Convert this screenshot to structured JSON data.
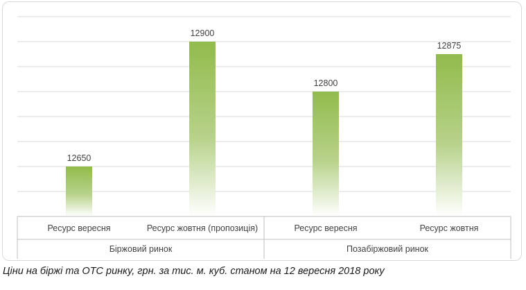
{
  "caption": "Ціни на біржі та ОТС ринку, грн. за тис. м. куб. станом на 12 вересня 2018 року",
  "chart_data": {
    "type": "bar",
    "title": "",
    "xlabel": "",
    "ylabel": "",
    "categories": [
      "Ресурс вересня",
      "Ресурс жовтня (пропозиція)",
      "Ресурс вересня",
      "Ресурс жовтня"
    ],
    "groups": [
      {
        "label": "Біржовий ринок",
        "span": [
          0,
          1
        ]
      },
      {
        "label": "Позабіржовий ринок",
        "span": [
          2,
          3
        ]
      }
    ],
    "series": [
      {
        "values": [
          12650,
          12900,
          12800,
          12875
        ]
      }
    ],
    "ylim": [
      12550,
      12950
    ],
    "grid": true,
    "legend": "none",
    "bar_color_top": "#92bb4c",
    "bar_color_bottom": "#ffffff",
    "gridline_color": "#d9d9d9"
  }
}
